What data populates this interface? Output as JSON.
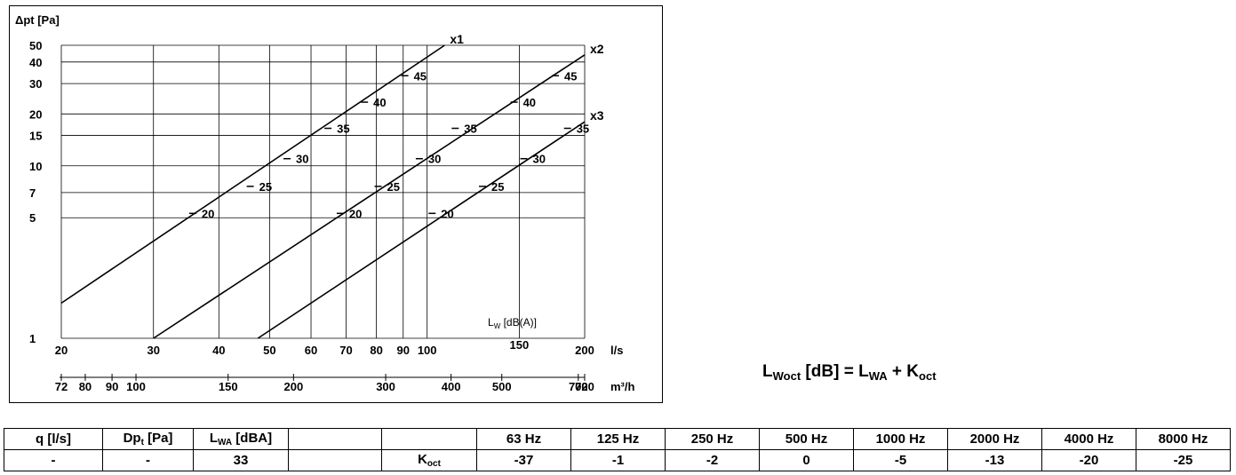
{
  "chart_data": {
    "type": "line",
    "x_scale": "log",
    "y_scale": "log",
    "xlabel": "l/s",
    "x2label": "m³/h",
    "ylabel": "Δpt [Pa]",
    "xlim": [
      20,
      200
    ],
    "ylim": [
      1,
      50
    ],
    "x_ticks": [
      20,
      30,
      40,
      50,
      60,
      70,
      80,
      90,
      100,
      150,
      200
    ],
    "y_ticks": [
      1,
      5,
      7,
      10,
      15,
      20,
      30,
      40,
      50
    ],
    "x2_ticks": [
      72,
      80,
      90,
      100,
      150,
      200,
      300,
      400,
      500,
      700,
      720
    ],
    "grid": true,
    "annotation": "LW [dB(A)]",
    "series": [
      {
        "name": "x1",
        "x": [
          20,
          108
        ],
        "y": [
          1.6,
          50
        ],
        "lw_marks": [
          {
            "label": "20",
            "x": 35.8,
            "y": 5.3
          },
          {
            "label": "25",
            "x": 46.1,
            "y": 7.6
          },
          {
            "label": "30",
            "x": 54.2,
            "y": 11
          },
          {
            "label": "35",
            "x": 64.9,
            "y": 16.5
          },
          {
            "label": "40",
            "x": 76.2,
            "y": 23.4
          },
          {
            "label": "45",
            "x": 91.0,
            "y": 33.3
          }
        ]
      },
      {
        "name": "x2",
        "x": [
          30,
          200
        ],
        "y": [
          1,
          44
        ],
        "lw_marks": [
          {
            "label": "20",
            "x": 68.5,
            "y": 5.3
          },
          {
            "label": "25",
            "x": 80.9,
            "y": 7.6
          },
          {
            "label": "30",
            "x": 97.0,
            "y": 11
          },
          {
            "label": "35",
            "x": 113.6,
            "y": 16.5
          },
          {
            "label": "40",
            "x": 147.2,
            "y": 23.4
          },
          {
            "label": "45",
            "x": 176.5,
            "y": 33.3
          }
        ]
      },
      {
        "name": "x3",
        "x": [
          47.5,
          200
        ],
        "y": [
          1,
          18
        ],
        "lw_marks": [
          {
            "label": "20",
            "x": 102.6,
            "y": 5.3
          },
          {
            "label": "25",
            "x": 128.1,
            "y": 7.6
          },
          {
            "label": "30",
            "x": 153.6,
            "y": 11
          },
          {
            "label": "35",
            "x": 186.2,
            "y": 16.5
          }
        ]
      }
    ]
  },
  "formula": {
    "lhs_main": "L",
    "lhs_sub": "Woct",
    "unit": " [dB] = ",
    "rhs1_main": "L",
    "rhs1_sub": "WA",
    "plus": " + ",
    "rhs2_main": "K",
    "rhs2_sub": "oct"
  },
  "table": {
    "headers": {
      "q": "q [l/s]",
      "dp_main": "Dp",
      "dp_sub": "t",
      "dp_unit": " [Pa]",
      "lwa_main": "L",
      "lwa_sub": "WA",
      "lwa_unit": " [dBA]"
    },
    "values": {
      "q": "-",
      "dp": "-",
      "lwa": "33"
    },
    "koct_main": "K",
    "koct_sub": "oct",
    "bands": [
      "63 Hz",
      "125 Hz",
      "250 Hz",
      "500 Hz",
      "1000 Hz",
      "2000 Hz",
      "4000 Hz",
      "8000 Hz"
    ],
    "koct": [
      "-37",
      "-1",
      "-2",
      "0",
      "-5",
      "-13",
      "-20",
      "-25"
    ]
  }
}
